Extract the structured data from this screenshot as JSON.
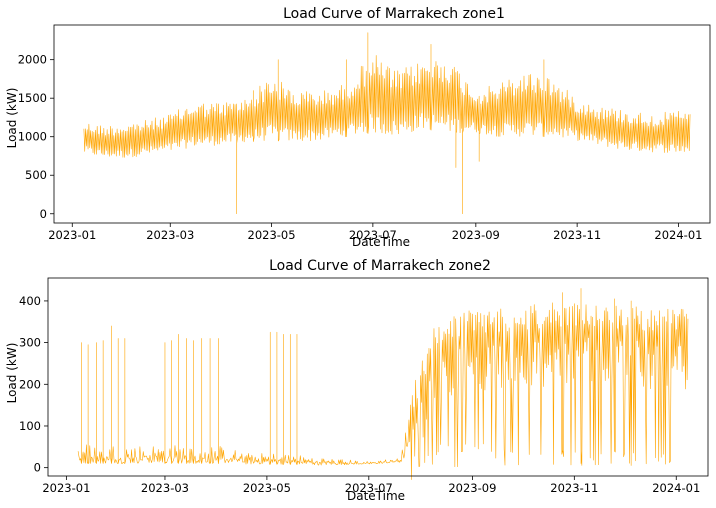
{
  "chart_data": [
    {
      "type": "line",
      "title": "Load Curve of Marrakech zone1",
      "xlabel": "DateTime",
      "ylabel": "Load (kW)",
      "color": "#FFA500",
      "xlim": [
        "2022-12-21",
        "2024-01-20"
      ],
      "ylim": [
        -120,
        2450
      ],
      "xticks": [
        "2023-01",
        "2023-03",
        "2023-05",
        "2023-07",
        "2023-09",
        "2023-11",
        "2024-01"
      ],
      "yticks": [
        0,
        500,
        1000,
        1500,
        2000
      ],
      "grid": false,
      "legend": "none",
      "series": [
        {
          "x_start": "2023-01-08",
          "x_end": "2024-01-08",
          "envelope": {
            "dates": [
              "2023-01-08",
              "2023-01-20",
              "2023-02-01",
              "2023-02-15",
              "2023-03-01",
              "2023-03-15",
              "2023-04-01",
              "2023-04-15",
              "2023-05-01",
              "2023-05-15",
              "2023-06-01",
              "2023-06-15",
              "2023-07-01",
              "2023-07-15",
              "2023-08-01",
              "2023-08-15",
              "2023-09-01",
              "2023-09-15",
              "2023-10-01",
              "2023-10-15",
              "2023-11-01",
              "2023-11-15",
              "2023-12-01",
              "2023-12-15",
              "2024-01-08"
            ],
            "lower": [
              780,
              730,
              720,
              760,
              800,
              870,
              890,
              930,
              950,
              930,
              950,
              1000,
              1050,
              1000,
              1100,
              1050,
              1050,
              1000,
              1000,
              1000,
              950,
              880,
              820,
              800,
              780
            ],
            "upper": [
              1200,
              1150,
              1180,
              1220,
              1300,
              1450,
              1450,
              1500,
              1800,
              1600,
              1600,
              1700,
              2100,
              1850,
              2000,
              2050,
              1600,
              1700,
              1850,
              1800,
              1500,
              1400,
              1350,
              1300,
              1350
            ]
          },
          "dips": [
            {
              "date": "2023-04-10",
              "value": 0
            },
            {
              "date": "2023-08-20",
              "value": 600
            },
            {
              "date": "2023-08-24",
              "value": 0
            },
            {
              "date": "2023-09-03",
              "value": 680
            }
          ],
          "peaks": [
            {
              "date": "2023-06-28",
              "value": 2350
            },
            {
              "date": "2023-06-15",
              "value": 2000
            },
            {
              "date": "2023-08-05",
              "value": 2200
            },
            {
              "date": "2023-10-12",
              "value": 2000
            },
            {
              "date": "2023-04-20",
              "value": 1600
            },
            {
              "date": "2023-05-05",
              "value": 2000
            }
          ]
        }
      ]
    },
    {
      "type": "line",
      "title": "Load Curve of Marrakech zone2",
      "xlabel": "DateTime",
      "ylabel": "Load (kW)",
      "color": "#FFA500",
      "xlim": [
        "2022-12-21",
        "2024-01-20"
      ],
      "ylim": [
        -20,
        455
      ],
      "xticks": [
        "2023-01",
        "2023-03",
        "2023-05",
        "2023-07",
        "2023-09",
        "2023-11",
        "2024-01"
      ],
      "yticks": [
        0,
        100,
        200,
        300,
        400
      ],
      "grid": false,
      "legend": "none",
      "series": [
        {
          "x_start": "2023-01-08",
          "x_end": "2024-01-08",
          "baseline": {
            "dates": [
              "2023-01-08",
              "2023-02-01",
              "2023-03-01",
              "2023-04-01",
              "2023-04-20",
              "2023-05-10",
              "2023-06-01",
              "2023-07-01",
              "2023-07-20",
              "2023-07-28",
              "2023-08-10",
              "2023-09-01",
              "2023-10-01",
              "2023-11-01",
              "2023-12-01",
              "2024-01-08"
            ],
            "low": [
              10,
              10,
              10,
              10,
              8,
              8,
              6,
              8,
              12,
              40,
              60,
              60,
              50,
              40,
              40,
              30
            ],
            "high": [
              60,
              55,
              55,
              55,
              35,
              35,
              25,
              15,
              25,
              200,
              350,
              380,
              390,
              400,
              390,
              380
            ]
          },
          "spikes": [
            {
              "date": "2023-01-10",
              "value": 300
            },
            {
              "date": "2023-01-14",
              "value": 295
            },
            {
              "date": "2023-01-19",
              "value": 300
            },
            {
              "date": "2023-01-23",
              "value": 305
            },
            {
              "date": "2023-01-28",
              "value": 340
            },
            {
              "date": "2023-02-01",
              "value": 310
            },
            {
              "date": "2023-02-05",
              "value": 310
            },
            {
              "date": "2023-03-01",
              "value": 300
            },
            {
              "date": "2023-03-05",
              "value": 305
            },
            {
              "date": "2023-03-09",
              "value": 320
            },
            {
              "date": "2023-03-14",
              "value": 310
            },
            {
              "date": "2023-03-18",
              "value": 305
            },
            {
              "date": "2023-03-23",
              "value": 310
            },
            {
              "date": "2023-03-28",
              "value": 310
            },
            {
              "date": "2023-04-02",
              "value": 310
            },
            {
              "date": "2023-05-03",
              "value": 325
            },
            {
              "date": "2023-05-07",
              "value": 325
            },
            {
              "date": "2023-05-11",
              "value": 320
            },
            {
              "date": "2023-05-15",
              "value": 320
            },
            {
              "date": "2023-05-19",
              "value": 320
            }
          ],
          "peaks": [
            {
              "date": "2023-10-25",
              "value": 420
            },
            {
              "date": "2023-11-05",
              "value": 430
            },
            {
              "date": "2023-11-25",
              "value": 405
            },
            {
              "date": "2023-12-05",
              "value": 400
            }
          ]
        }
      ]
    }
  ]
}
